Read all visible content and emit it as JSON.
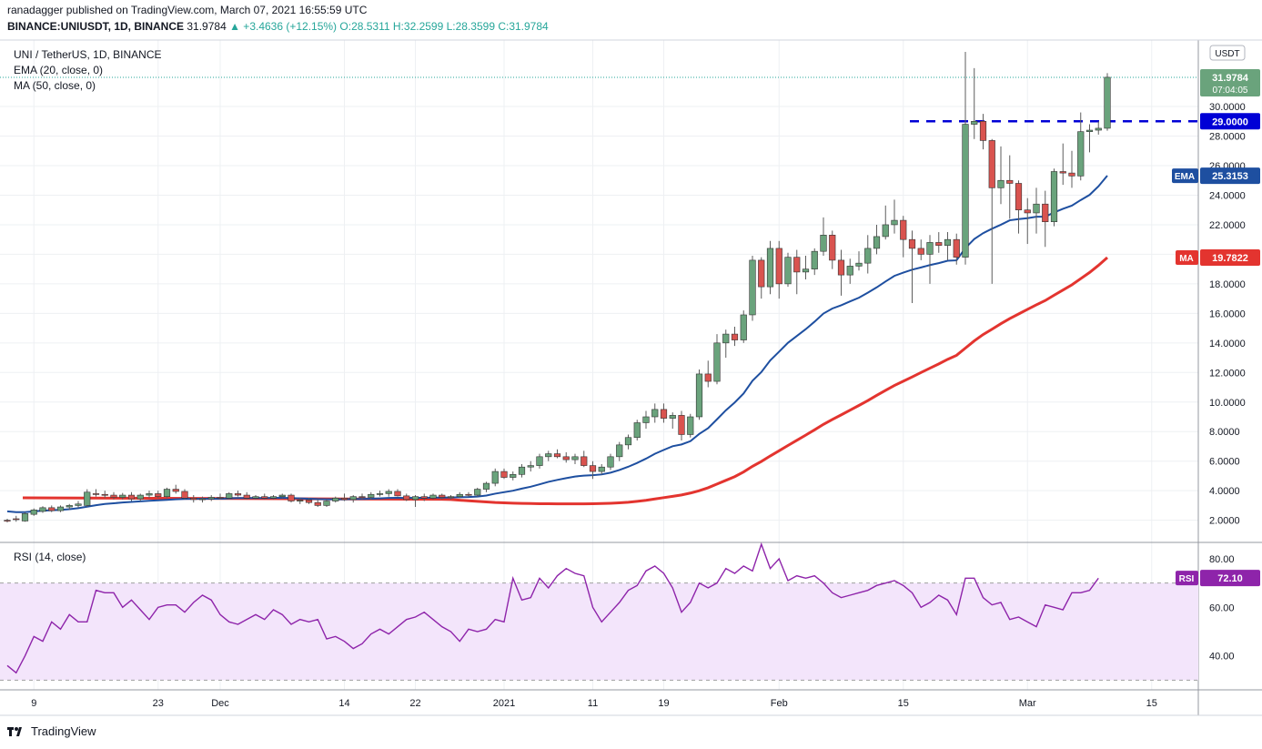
{
  "header": {
    "published": "ranadagger published on TradingView.com, March 07, 2021 16:55:59 UTC",
    "symbol": "BINANCE:UNIUSDT, 1D, BINANCE",
    "last": "31.9784",
    "change": "▲ +3.4636 (+12.15%)",
    "ohlc": "O:28.5311 H:32.2599 L:28.3599 C:31.9784"
  },
  "footer": {
    "brand": "TradingView"
  },
  "chart_data": {
    "type": "candlestick",
    "title": "UNI / TetherUS, 1D, BINANCE",
    "indicators": [
      "EMA (20, close, 0)",
      "MA (50, close, 0)"
    ],
    "currency_label": "USDT",
    "ylim": [
      0.5,
      34.5
    ],
    "y_ticks": [
      "2.0000",
      "4.0000",
      "6.0000",
      "8.0000",
      "10.0000",
      "12.0000",
      "14.0000",
      "16.0000",
      "18.0000",
      "20.0000",
      "22.0000",
      "24.0000",
      "26.0000",
      "28.0000",
      "30.0000"
    ],
    "x_ticks": [
      {
        "label": "9",
        "i": 3
      },
      {
        "label": "23",
        "i": 17
      },
      {
        "label": "Dec",
        "i": 24
      },
      {
        "label": "14",
        "i": 38
      },
      {
        "label": "22",
        "i": 46
      },
      {
        "label": "2021",
        "i": 56
      },
      {
        "label": "11",
        "i": 66
      },
      {
        "label": "19",
        "i": 74
      },
      {
        "label": "Feb",
        "i": 87
      },
      {
        "label": "15",
        "i": 101
      },
      {
        "label": "Mar",
        "i": 115
      },
      {
        "label": "15",
        "i": 129
      }
    ],
    "last_price": {
      "value": 31.9784,
      "label": "31.9784",
      "countdown": "07:04:05"
    },
    "resistance": {
      "value": 29.0,
      "label": "29.0000"
    },
    "ema_last": {
      "value": 25.3153,
      "label": "25.3153",
      "tag": "EMA"
    },
    "ma_last": {
      "value": 19.7822,
      "label": "19.7822",
      "tag": "MA"
    },
    "candles": [
      [
        2.0,
        2.1,
        1.85,
        1.95
      ],
      [
        2.1,
        2.3,
        1.9,
        2.05
      ],
      [
        1.95,
        2.55,
        1.9,
        2.45
      ],
      [
        2.4,
        2.8,
        2.3,
        2.7
      ],
      [
        2.6,
        2.95,
        2.5,
        2.85
      ],
      [
        2.85,
        3.0,
        2.55,
        2.65
      ],
      [
        2.65,
        3.0,
        2.55,
        2.9
      ],
      [
        2.9,
        3.1,
        2.7,
        3.0
      ],
      [
        3.0,
        3.3,
        2.85,
        3.1
      ],
      [
        3.0,
        4.1,
        2.9,
        3.9
      ],
      [
        3.8,
        4.1,
        3.6,
        3.75
      ],
      [
        3.75,
        4.0,
        3.5,
        3.7
      ],
      [
        3.7,
        3.9,
        3.4,
        3.55
      ],
      [
        3.55,
        3.85,
        3.4,
        3.7
      ],
      [
        3.7,
        3.9,
        3.3,
        3.45
      ],
      [
        3.45,
        3.8,
        3.3,
        3.7
      ],
      [
        3.7,
        4.0,
        3.5,
        3.8
      ],
      [
        3.8,
        4.0,
        3.5,
        3.6
      ],
      [
        3.6,
        4.2,
        3.5,
        4.1
      ],
      [
        4.1,
        4.4,
        3.8,
        3.95
      ],
      [
        3.95,
        4.1,
        3.4,
        3.5
      ],
      [
        3.5,
        3.7,
        3.2,
        3.4
      ],
      [
        3.4,
        3.6,
        3.2,
        3.45
      ],
      [
        3.45,
        3.7,
        3.3,
        3.55
      ],
      [
        3.55,
        3.8,
        3.4,
        3.5
      ],
      [
        3.5,
        3.9,
        3.4,
        3.8
      ],
      [
        3.8,
        4.0,
        3.6,
        3.7
      ],
      [
        3.7,
        3.9,
        3.4,
        3.5
      ],
      [
        3.5,
        3.7,
        3.4,
        3.6
      ],
      [
        3.6,
        3.8,
        3.4,
        3.5
      ],
      [
        3.5,
        3.7,
        3.4,
        3.6
      ],
      [
        3.6,
        3.8,
        3.5,
        3.7
      ],
      [
        3.7,
        3.8,
        3.2,
        3.3
      ],
      [
        3.3,
        3.5,
        3.1,
        3.35
      ],
      [
        3.35,
        3.5,
        3.1,
        3.2
      ],
      [
        3.2,
        3.4,
        2.9,
        3.0
      ],
      [
        3.0,
        3.4,
        2.9,
        3.3
      ],
      [
        3.3,
        3.6,
        3.2,
        3.5
      ],
      [
        3.5,
        3.8,
        3.3,
        3.4
      ],
      [
        3.4,
        3.7,
        3.2,
        3.6
      ],
      [
        3.6,
        3.8,
        3.4,
        3.55
      ],
      [
        3.55,
        3.9,
        3.4,
        3.75
      ],
      [
        3.75,
        4.0,
        3.6,
        3.8
      ],
      [
        3.8,
        4.1,
        3.6,
        3.95
      ],
      [
        3.95,
        4.1,
        3.6,
        3.65
      ],
      [
        3.65,
        3.8,
        3.3,
        3.4
      ],
      [
        3.4,
        3.7,
        2.9,
        3.6
      ],
      [
        3.6,
        3.8,
        3.3,
        3.5
      ],
      [
        3.5,
        3.8,
        3.4,
        3.7
      ],
      [
        3.7,
        3.8,
        3.4,
        3.55
      ],
      [
        3.55,
        3.7,
        3.4,
        3.6
      ],
      [
        3.6,
        3.9,
        3.5,
        3.75
      ],
      [
        3.75,
        3.9,
        3.6,
        3.7
      ],
      [
        3.7,
        4.2,
        3.6,
        4.1
      ],
      [
        4.1,
        4.6,
        3.9,
        4.5
      ],
      [
        4.5,
        5.5,
        4.3,
        5.3
      ],
      [
        5.3,
        5.5,
        4.8,
        4.9
      ],
      [
        4.9,
        5.3,
        4.7,
        5.1
      ],
      [
        5.1,
        5.8,
        4.9,
        5.6
      ],
      [
        5.6,
        6.0,
        5.3,
        5.7
      ],
      [
        5.7,
        6.5,
        5.5,
        6.3
      ],
      [
        6.3,
        6.7,
        6.0,
        6.5
      ],
      [
        6.5,
        6.8,
        6.2,
        6.3
      ],
      [
        6.3,
        6.6,
        5.9,
        6.1
      ],
      [
        6.1,
        6.5,
        5.8,
        6.3
      ],
      [
        6.3,
        6.7,
        5.6,
        5.7
      ],
      [
        5.7,
        6.0,
        4.8,
        5.3
      ],
      [
        5.3,
        5.8,
        5.1,
        5.6
      ],
      [
        5.6,
        6.5,
        5.4,
        6.3
      ],
      [
        6.3,
        7.3,
        6.0,
        7.1
      ],
      [
        7.1,
        7.8,
        6.8,
        7.6
      ],
      [
        7.6,
        8.8,
        7.4,
        8.6
      ],
      [
        8.6,
        9.4,
        8.2,
        9.0
      ],
      [
        9.0,
        9.9,
        8.6,
        9.5
      ],
      [
        9.5,
        9.9,
        8.6,
        8.9
      ],
      [
        8.9,
        9.3,
        8.2,
        9.1
      ],
      [
        9.1,
        9.4,
        7.4,
        7.8
      ],
      [
        7.8,
        9.2,
        7.6,
        9.0
      ],
      [
        9.0,
        12.2,
        8.8,
        11.9
      ],
      [
        11.9,
        12.8,
        11.0,
        11.4
      ],
      [
        11.4,
        14.6,
        11.2,
        14.0
      ],
      [
        14.0,
        14.9,
        13.0,
        14.6
      ],
      [
        14.6,
        15.1,
        13.8,
        14.2
      ],
      [
        14.2,
        16.2,
        14.0,
        15.9
      ],
      [
        15.9,
        19.9,
        15.5,
        19.6
      ],
      [
        19.6,
        19.8,
        17.0,
        17.8
      ],
      [
        17.8,
        20.9,
        17.3,
        20.4
      ],
      [
        20.4,
        20.9,
        17.0,
        18.0
      ],
      [
        18.0,
        20.1,
        17.8,
        19.8
      ],
      [
        19.8,
        20.3,
        17.3,
        18.8
      ],
      [
        18.8,
        19.9,
        18.3,
        19.0
      ],
      [
        19.0,
        20.4,
        18.6,
        20.2
      ],
      [
        20.2,
        22.5,
        19.9,
        21.3
      ],
      [
        21.3,
        21.6,
        19.0,
        19.6
      ],
      [
        19.6,
        20.3,
        17.2,
        18.6
      ],
      [
        18.6,
        19.7,
        18.0,
        19.2
      ],
      [
        19.2,
        20.2,
        18.9,
        19.4
      ],
      [
        19.4,
        21.3,
        18.7,
        20.4
      ],
      [
        20.4,
        22.0,
        20.0,
        21.2
      ],
      [
        21.2,
        23.3,
        21.0,
        22.0
      ],
      [
        22.0,
        23.7,
        21.4,
        22.3
      ],
      [
        22.3,
        22.6,
        19.8,
        21.0
      ],
      [
        21.0,
        21.6,
        16.7,
        20.4
      ],
      [
        20.4,
        21.0,
        19.6,
        20.0
      ],
      [
        20.0,
        21.3,
        18.0,
        20.8
      ],
      [
        20.8,
        21.5,
        20.1,
        20.6
      ],
      [
        20.6,
        21.5,
        19.6,
        21.0
      ],
      [
        21.0,
        21.4,
        19.3,
        19.8
      ],
      [
        19.8,
        33.7,
        19.3,
        28.8
      ],
      [
        28.8,
        32.6,
        27.8,
        29.0
      ],
      [
        29.0,
        29.5,
        27.1,
        27.7
      ],
      [
        27.7,
        27.8,
        18.0,
        24.5
      ],
      [
        24.5,
        27.3,
        23.4,
        25.0
      ],
      [
        25.0,
        26.7,
        22.4,
        24.8
      ],
      [
        24.8,
        25.0,
        21.4,
        23.0
      ],
      [
        23.0,
        23.8,
        20.7,
        22.8
      ],
      [
        22.8,
        24.5,
        21.4,
        23.4
      ],
      [
        23.4,
        24.3,
        20.5,
        22.2
      ],
      [
        22.2,
        25.8,
        21.9,
        25.6
      ],
      [
        25.6,
        27.5,
        24.7,
        25.5
      ],
      [
        25.5,
        27.0,
        24.5,
        25.3
      ],
      [
        25.3,
        29.6,
        25.0,
        28.3
      ],
      [
        28.3,
        28.8,
        26.9,
        28.4
      ],
      [
        28.4,
        29.0,
        28.1,
        28.53
      ],
      [
        28.53,
        32.26,
        28.36,
        31.98
      ]
    ],
    "ema": [
      2.6,
      2.55,
      2.55,
      2.6,
      2.65,
      2.68,
      2.7,
      2.75,
      2.82,
      2.92,
      3.02,
      3.1,
      3.15,
      3.2,
      3.24,
      3.28,
      3.32,
      3.35,
      3.38,
      3.42,
      3.44,
      3.45,
      3.45,
      3.46,
      3.46,
      3.48,
      3.5,
      3.5,
      3.5,
      3.5,
      3.51,
      3.52,
      3.5,
      3.48,
      3.46,
      3.43,
      3.42,
      3.42,
      3.42,
      3.43,
      3.44,
      3.46,
      3.48,
      3.51,
      3.52,
      3.51,
      3.52,
      3.52,
      3.53,
      3.53,
      3.54,
      3.56,
      3.57,
      3.6,
      3.67,
      3.8,
      3.9,
      4.0,
      4.14,
      4.27,
      4.43,
      4.6,
      4.73,
      4.85,
      4.96,
      5.02,
      5.05,
      5.1,
      5.22,
      5.4,
      5.62,
      5.88,
      6.17,
      6.5,
      6.76,
      7.01,
      7.13,
      7.35,
      7.84,
      8.23,
      8.83,
      9.44,
      9.97,
      10.58,
      11.44,
      12.03,
      12.82,
      13.41,
      14.01,
      14.47,
      14.93,
      15.44,
      15.99,
      16.33,
      16.55,
      16.81,
      17.06,
      17.4,
      17.76,
      18.16,
      18.54,
      18.76,
      18.96,
      19.11,
      19.27,
      19.4,
      19.56,
      19.59,
      20.42,
      21.03,
      21.43,
      21.73,
      22.0,
      22.3,
      22.38,
      22.44,
      22.54,
      22.54,
      22.83,
      23.08,
      23.29,
      23.67,
      24.02,
      24.6,
      25.32
    ],
    "ma": [
      null,
      null,
      null,
      null,
      null,
      null,
      null,
      null,
      null,
      null,
      null,
      null,
      null,
      null,
      null,
      null,
      null,
      null,
      null,
      null,
      null,
      null,
      null,
      null,
      null,
      null,
      null,
      null,
      null,
      null,
      null,
      null,
      null,
      null,
      null,
      null,
      null,
      null,
      null,
      null,
      null,
      null,
      null,
      null,
      null,
      null,
      null,
      null,
      null,
      3.42,
      3.4,
      3.36,
      3.32,
      3.28,
      3.24,
      3.2,
      3.18,
      3.16,
      3.14,
      3.13,
      3.12,
      3.12,
      3.11,
      3.11,
      3.11,
      3.11,
      3.12,
      3.13,
      3.15,
      3.18,
      3.22,
      3.28,
      3.35,
      3.44,
      3.53,
      3.62,
      3.71,
      3.84,
      4.0,
      4.2,
      4.45,
      4.7,
      4.95,
      5.27,
      5.65,
      5.98,
      6.35,
      6.7,
      7.06,
      7.41,
      7.76,
      8.12,
      8.49,
      8.82,
      9.13,
      9.45,
      9.77,
      10.1,
      10.45,
      10.79,
      11.12,
      11.41,
      11.7,
      12.0,
      12.29,
      12.58,
      12.89,
      13.16,
      13.65,
      14.14,
      14.57,
      14.93,
      15.3,
      15.65,
      15.96,
      16.27,
      16.58,
      16.87,
      17.23,
      17.58,
      17.93,
      18.35,
      18.77,
      19.25,
      19.78
    ],
    "rsi": {
      "label": "RSI (14, close)",
      "ticks": [
        "40.00",
        "60.00",
        "80.00"
      ],
      "band": [
        30,
        70
      ],
      "ylim": [
        26,
        86
      ],
      "last": {
        "value": 72.1,
        "label": "72.10",
        "tag": "RSI"
      },
      "values": [
        36,
        33,
        40,
        48,
        46,
        54,
        51,
        57,
        54,
        54,
        67,
        66,
        66,
        60,
        63,
        59,
        55,
        60,
        61,
        61,
        58,
        62,
        65,
        63,
        57,
        54,
        53,
        55,
        57,
        55,
        59,
        57,
        53,
        55,
        54,
        55,
        47,
        48,
        46,
        43,
        45,
        49,
        51,
        49,
        52,
        55,
        56,
        58,
        55,
        52,
        50,
        46,
        51,
        50,
        51,
        55,
        54,
        72,
        63,
        64,
        72,
        68,
        73,
        76,
        74,
        73,
        60,
        54,
        58,
        62,
        67,
        69,
        75,
        77,
        74,
        68,
        58,
        62,
        70,
        68,
        70,
        76,
        74,
        77,
        75,
        86,
        76,
        80,
        71,
        73,
        72,
        73,
        70,
        66,
        64,
        65,
        66,
        67,
        69,
        70,
        71,
        69,
        66,
        60,
        62,
        65,
        63,
        57,
        72,
        72,
        64,
        61,
        62,
        55,
        56,
        54,
        52,
        61,
        60,
        59,
        66,
        66,
        67,
        72
      ]
    }
  }
}
